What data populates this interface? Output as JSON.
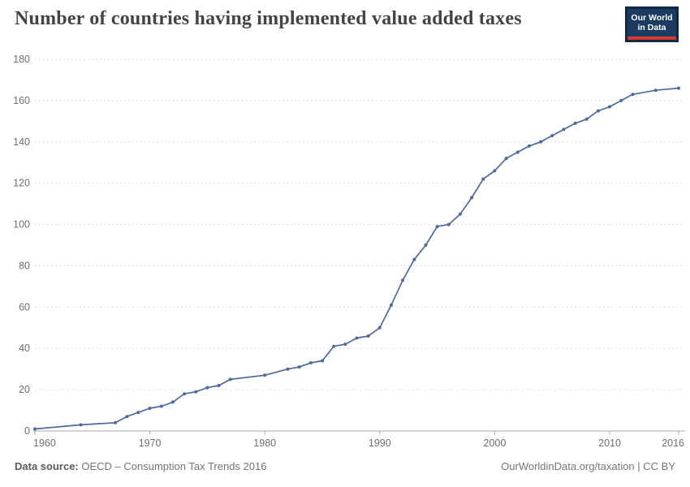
{
  "header": {
    "title": "Number of countries having implemented value added taxes",
    "logo": {
      "line1": "Our World",
      "line2": "in Data"
    }
  },
  "footer": {
    "source_label": "Data source:",
    "source_text": " OECD – Consumption Tax Trends 2016",
    "link_text": "OurWorldinData.org/taxation | CC BY"
  },
  "chart_data": {
    "type": "line",
    "title": "Number of countries having implemented value added taxes",
    "x": [
      1960,
      1964,
      1967,
      1968,
      1969,
      1970,
      1971,
      1972,
      1973,
      1974,
      1975,
      1976,
      1977,
      1980,
      1982,
      1983,
      1984,
      1985,
      1986,
      1987,
      1988,
      1989,
      1990,
      1991,
      1992,
      1993,
      1994,
      1995,
      1996,
      1997,
      1998,
      1999,
      2000,
      2001,
      2002,
      2003,
      2004,
      2005,
      2006,
      2007,
      2008,
      2009,
      2010,
      2011,
      2012,
      2014,
      2016
    ],
    "values": [
      1,
      3,
      4,
      7,
      9,
      11,
      12,
      14,
      18,
      19,
      21,
      22,
      25,
      27,
      30,
      31,
      33,
      34,
      41,
      42,
      45,
      46,
      50,
      61,
      73,
      83,
      90,
      99,
      100,
      105,
      113,
      122,
      126,
      132,
      135,
      138,
      140,
      143,
      146,
      149,
      151,
      155,
      157,
      160,
      163,
      165,
      166
    ],
    "x_ticks": [
      1960,
      1970,
      1980,
      1990,
      2000,
      2010,
      2016
    ],
    "y_ticks": [
      0,
      20,
      40,
      60,
      80,
      100,
      120,
      140,
      160,
      180
    ],
    "xlim": [
      1960,
      2016
    ],
    "ylim": [
      0,
      180
    ],
    "xlabel": "",
    "ylabel": "",
    "grid": "dashed-horizontal",
    "legend": "none",
    "line_color": "#4d69a0",
    "grid_color": "#dcdcdc",
    "axis_color": "#a9a9a9"
  }
}
